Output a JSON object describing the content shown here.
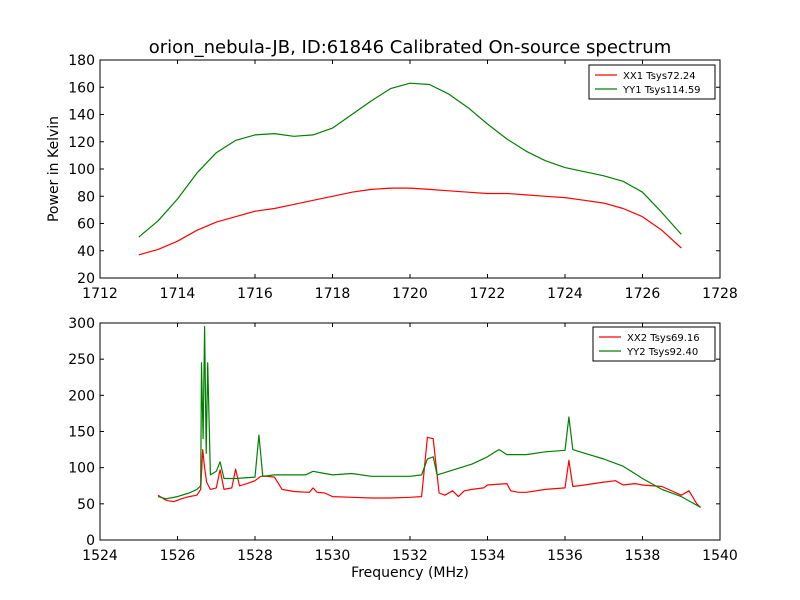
{
  "figure": {
    "title": "orion_nebula-JB, ID:61846 Calibrated On-source spectrum",
    "xlabel": "Frequency (MHz)",
    "ylabel": "Power in Kelvin"
  },
  "chart_data": [
    {
      "type": "line",
      "title": "orion_nebula-JB, ID:61846 Calibrated On-source spectrum",
      "xlabel": "",
      "ylabel": "Power in Kelvin",
      "xlim": [
        1712,
        1728
      ],
      "ylim": [
        20,
        180
      ],
      "xticks": [
        1712,
        1714,
        1716,
        1718,
        1720,
        1722,
        1724,
        1726,
        1728
      ],
      "yticks": [
        20,
        40,
        60,
        80,
        100,
        120,
        140,
        160,
        180
      ],
      "grid": false,
      "legend": "top-right",
      "series": [
        {
          "name": "XX1 Tsys72.24",
          "color": "#ff0000",
          "points": [
            [
              1713.0,
              37
            ],
            [
              1713.5,
              41
            ],
            [
              1714.0,
              47
            ],
            [
              1714.5,
              55
            ],
            [
              1715.0,
              61
            ],
            [
              1715.5,
              65
            ],
            [
              1716.0,
              69
            ],
            [
              1716.5,
              71
            ],
            [
              1717.0,
              74
            ],
            [
              1717.5,
              77
            ],
            [
              1718.0,
              80
            ],
            [
              1718.5,
              83
            ],
            [
              1719.0,
              85
            ],
            [
              1719.5,
              86
            ],
            [
              1720.0,
              86
            ],
            [
              1720.5,
              85
            ],
            [
              1721.0,
              84
            ],
            [
              1721.5,
              83
            ],
            [
              1722.0,
              82
            ],
            [
              1722.5,
              82
            ],
            [
              1723.0,
              81
            ],
            [
              1723.5,
              80
            ],
            [
              1724.0,
              79
            ],
            [
              1724.5,
              77
            ],
            [
              1725.0,
              75
            ],
            [
              1725.5,
              71
            ],
            [
              1726.0,
              65
            ],
            [
              1726.5,
              55
            ],
            [
              1727.0,
              42
            ]
          ]
        },
        {
          "name": "YY1 Tsys114.59",
          "color": "#008000",
          "points": [
            [
              1713.0,
              50
            ],
            [
              1713.5,
              62
            ],
            [
              1714.0,
              78
            ],
            [
              1714.5,
              97
            ],
            [
              1715.0,
              112
            ],
            [
              1715.5,
              121
            ],
            [
              1716.0,
              125
            ],
            [
              1716.5,
              126
            ],
            [
              1717.0,
              124
            ],
            [
              1717.5,
              125
            ],
            [
              1718.0,
              130
            ],
            [
              1718.5,
              140
            ],
            [
              1719.0,
              150
            ],
            [
              1719.5,
              159
            ],
            [
              1720.0,
              163
            ],
            [
              1720.5,
              162
            ],
            [
              1721.0,
              155
            ],
            [
              1721.5,
              145
            ],
            [
              1722.0,
              133
            ],
            [
              1722.5,
              122
            ],
            [
              1723.0,
              113
            ],
            [
              1723.5,
              106
            ],
            [
              1724.0,
              101
            ],
            [
              1724.5,
              98
            ],
            [
              1725.0,
              95
            ],
            [
              1725.5,
              91
            ],
            [
              1726.0,
              83
            ],
            [
              1726.5,
              68
            ],
            [
              1727.0,
              52
            ]
          ]
        }
      ]
    },
    {
      "type": "line",
      "title": "",
      "xlabel": "Frequency (MHz)",
      "ylabel": "",
      "xlim": [
        1524,
        1540
      ],
      "ylim": [
        0,
        300
      ],
      "xticks": [
        1524,
        1526,
        1528,
        1530,
        1532,
        1534,
        1536,
        1538,
        1540
      ],
      "yticks": [
        0,
        50,
        100,
        150,
        200,
        250,
        300
      ],
      "grid": false,
      "legend": "top-right",
      "series": [
        {
          "name": "XX2 Tsys69.16",
          "color": "#ff0000",
          "points": [
            [
              1525.5,
              62
            ],
            [
              1525.7,
              55
            ],
            [
              1525.9,
              53
            ],
            [
              1526.1,
              57
            ],
            [
              1526.3,
              60
            ],
            [
              1526.5,
              62
            ],
            [
              1526.6,
              70
            ],
            [
              1526.65,
              125
            ],
            [
              1526.7,
              100
            ],
            [
              1526.75,
              80
            ],
            [
              1526.85,
              70
            ],
            [
              1527.0,
              72
            ],
            [
              1527.1,
              97
            ],
            [
              1527.2,
              70
            ],
            [
              1527.4,
              72
            ],
            [
              1527.5,
              98
            ],
            [
              1527.6,
              75
            ],
            [
              1527.8,
              78
            ],
            [
              1528.0,
              82
            ],
            [
              1528.15,
              88
            ],
            [
              1528.3,
              88
            ],
            [
              1528.5,
              87
            ],
            [
              1528.7,
              70
            ],
            [
              1529.0,
              67
            ],
            [
              1529.4,
              66
            ],
            [
              1529.5,
              72
            ],
            [
              1529.6,
              66
            ],
            [
              1529.8,
              65
            ],
            [
              1530.0,
              60
            ],
            [
              1530.5,
              59
            ],
            [
              1531.0,
              58
            ],
            [
              1531.5,
              58
            ],
            [
              1532.0,
              59
            ],
            [
              1532.3,
              60
            ],
            [
              1532.45,
              142
            ],
            [
              1532.6,
              140
            ],
            [
              1532.75,
              65
            ],
            [
              1532.9,
              62
            ],
            [
              1533.1,
              68
            ],
            [
              1533.25,
              60
            ],
            [
              1533.4,
              68
            ],
            [
              1533.6,
              70
            ],
            [
              1533.9,
              72
            ],
            [
              1534.0,
              76
            ],
            [
              1534.5,
              78
            ],
            [
              1534.6,
              68
            ],
            [
              1534.8,
              66
            ],
            [
              1535.0,
              66
            ],
            [
              1535.5,
              70
            ],
            [
              1536.0,
              72
            ],
            [
              1536.1,
              110
            ],
            [
              1536.2,
              74
            ],
            [
              1536.5,
              76
            ],
            [
              1537.0,
              80
            ],
            [
              1537.3,
              82
            ],
            [
              1537.5,
              76
            ],
            [
              1537.8,
              78
            ],
            [
              1538.0,
              76
            ],
            [
              1538.5,
              74
            ],
            [
              1539.0,
              62
            ],
            [
              1539.2,
              68
            ],
            [
              1539.4,
              50
            ],
            [
              1539.5,
              45
            ]
          ]
        },
        {
          "name": "YY2 Tsys92.40",
          "color": "#008000",
          "points": [
            [
              1525.5,
              60
            ],
            [
              1525.7,
              57
            ],
            [
              1526.0,
              60
            ],
            [
              1526.3,
              65
            ],
            [
              1526.5,
              70
            ],
            [
              1526.6,
              75
            ],
            [
              1526.62,
              245
            ],
            [
              1526.66,
              140
            ],
            [
              1526.7,
              295
            ],
            [
              1526.74,
              120
            ],
            [
              1526.78,
              245
            ],
            [
              1526.85,
              90
            ],
            [
              1527.0,
              95
            ],
            [
              1527.1,
              108
            ],
            [
              1527.2,
              85
            ],
            [
              1527.5,
              85
            ],
            [
              1528.0,
              87
            ],
            [
              1528.1,
              145
            ],
            [
              1528.2,
              88
            ],
            [
              1528.5,
              90
            ],
            [
              1529.0,
              90
            ],
            [
              1529.3,
              90
            ],
            [
              1529.5,
              95
            ],
            [
              1529.8,
              92
            ],
            [
              1530.0,
              90
            ],
            [
              1530.5,
              92
            ],
            [
              1531.0,
              88
            ],
            [
              1531.5,
              88
            ],
            [
              1532.0,
              88
            ],
            [
              1532.3,
              90
            ],
            [
              1532.45,
              112
            ],
            [
              1532.6,
              115
            ],
            [
              1532.7,
              90
            ],
            [
              1533.0,
              95
            ],
            [
              1533.3,
              100
            ],
            [
              1533.6,
              105
            ],
            [
              1534.0,
              115
            ],
            [
              1534.2,
              122
            ],
            [
              1534.3,
              125
            ],
            [
              1534.5,
              118
            ],
            [
              1535.0,
              118
            ],
            [
              1535.5,
              122
            ],
            [
              1536.0,
              124
            ],
            [
              1536.1,
              170
            ],
            [
              1536.2,
              125
            ],
            [
              1536.5,
              120
            ],
            [
              1537.0,
              112
            ],
            [
              1537.2,
              108
            ],
            [
              1537.5,
              102
            ],
            [
              1537.8,
              92
            ],
            [
              1538.0,
              85
            ],
            [
              1538.5,
              70
            ],
            [
              1539.0,
              60
            ],
            [
              1539.5,
              45
            ]
          ]
        }
      ]
    }
  ]
}
